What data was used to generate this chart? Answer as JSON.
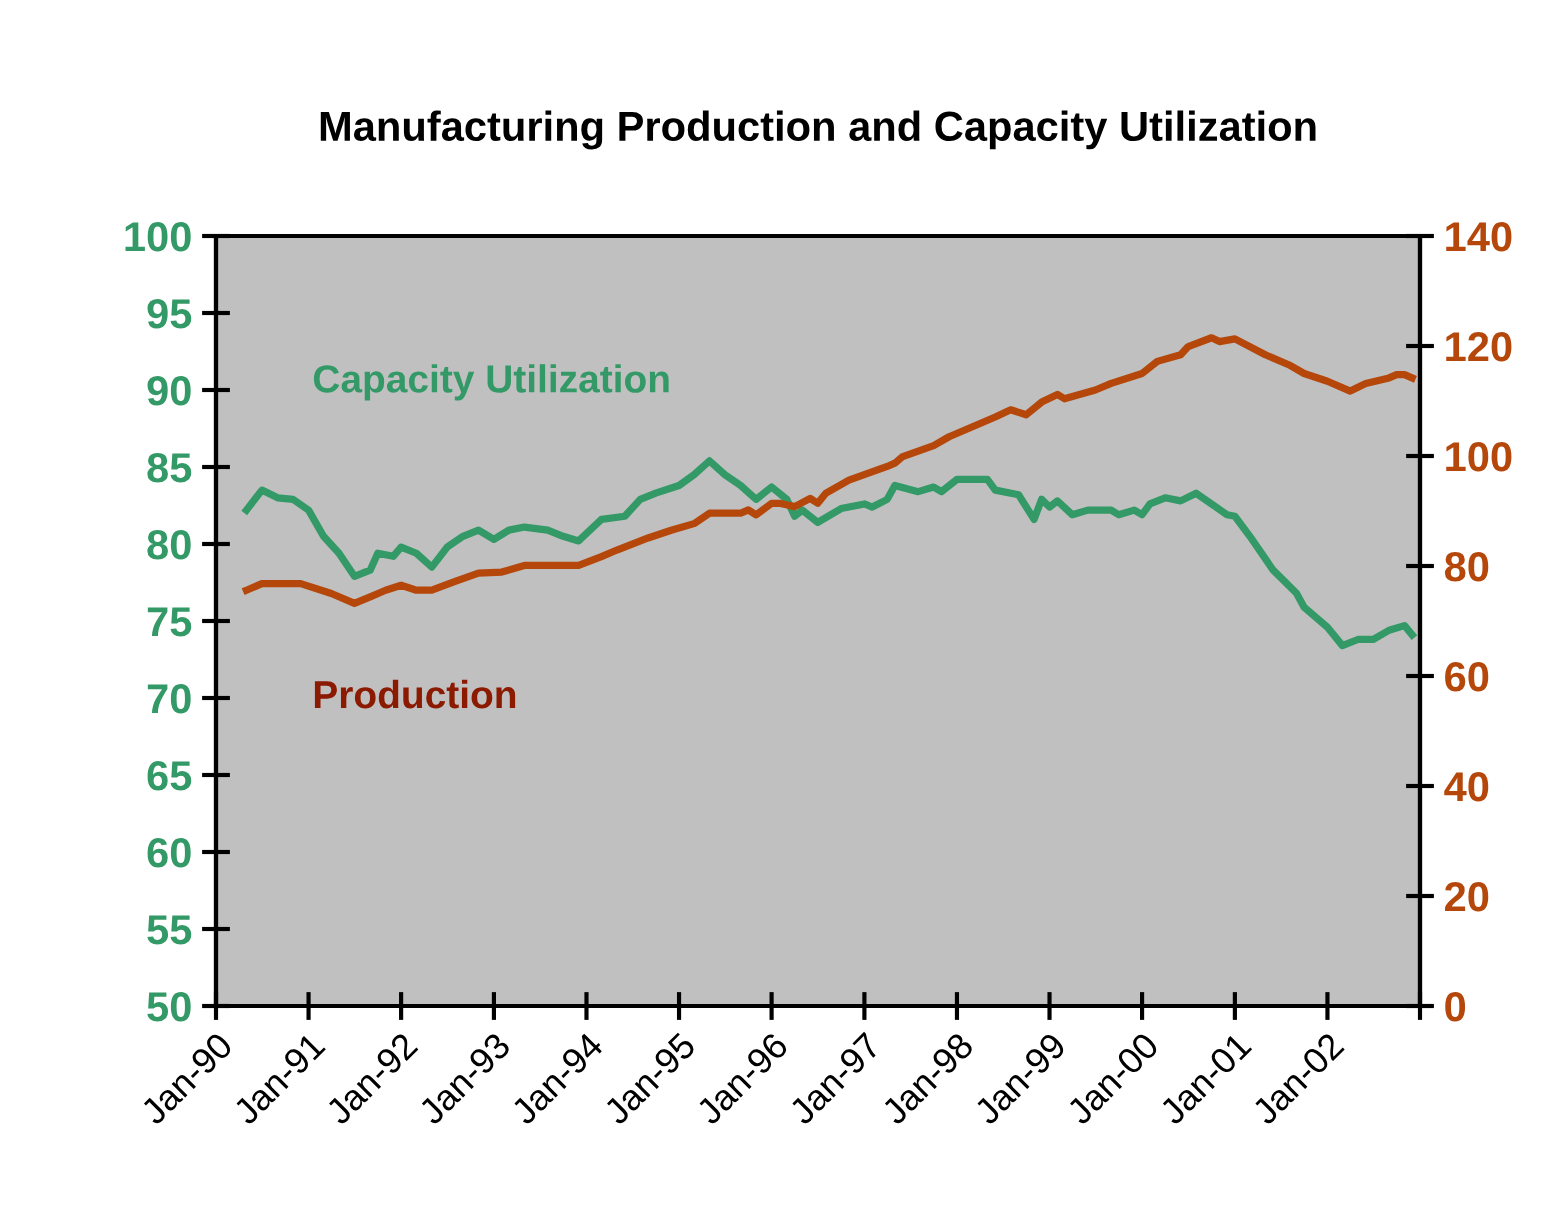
{
  "chart_data": {
    "type": "line",
    "title": "Manufacturing Production and Capacity Utilization",
    "xlim": [
      "1990-01",
      "2003-01"
    ],
    "xticks": [
      {
        "value": "1990-01",
        "label": "Jan-90"
      },
      {
        "value": "1991-01",
        "label": "Jan-91"
      },
      {
        "value": "1992-01",
        "label": "Jan-92"
      },
      {
        "value": "1993-01",
        "label": "Jan-93"
      },
      {
        "value": "1994-01",
        "label": "Jan-94"
      },
      {
        "value": "1995-01",
        "label": "Jan-95"
      },
      {
        "value": "1996-01",
        "label": "Jan-96"
      },
      {
        "value": "1997-01",
        "label": "Jan-97"
      },
      {
        "value": "1998-01",
        "label": "Jan-98"
      },
      {
        "value": "1999-01",
        "label": "Jan-99"
      },
      {
        "value": "2000-01",
        "label": "Jan-00"
      },
      {
        "value": "2001-01",
        "label": "Jan-01"
      },
      {
        "value": "2002-01",
        "label": "Jan-02"
      },
      {
        "value": "2003-01",
        "label": null
      }
    ],
    "ylim": [
      50,
      100
    ],
    "yticks": [
      50,
      55,
      60,
      65,
      70,
      75,
      80,
      85,
      90,
      95,
      100
    ],
    "y2lim": [
      0,
      140
    ],
    "y2ticks": [
      0,
      20,
      40,
      60,
      80,
      100,
      120,
      140
    ],
    "grid": false,
    "legend": false,
    "marker": "none",
    "line_style": "solid",
    "series": [
      {
        "name": "Capacity Utilization",
        "color": "#339966",
        "axis": "y",
        "x": [
          "1990-05",
          "1990-07",
          "1990-09",
          "1990-11",
          "1991-01",
          "1991-03",
          "1991-05",
          "1991-07",
          "1991-09",
          "1991-10",
          "1991-12",
          "1992-01",
          "1992-03",
          "1992-05",
          "1992-07",
          "1992-09",
          "1992-11",
          "1993-01",
          "1993-03",
          "1993-05",
          "1993-08",
          "1993-10",
          "1993-12",
          "1994-03",
          "1994-06",
          "1994-08",
          "1994-10",
          "1995-01",
          "1995-03",
          "1995-05",
          "1995-07",
          "1995-09",
          "1995-11",
          "1996-01",
          "1996-03",
          "1996-04",
          "1996-05",
          "1996-07",
          "1996-10",
          "1997-01",
          "1997-02",
          "1997-04",
          "1997-05",
          "1997-08",
          "1997-10",
          "1997-11",
          "1998-01",
          "1998-03",
          "1998-05",
          "1998-06",
          "1998-09",
          "1998-11",
          "1998-12",
          "1999-01",
          "1999-02",
          "1999-04",
          "1999-06",
          "1999-09",
          "1999-10",
          "1999-12",
          "2000-01",
          "2000-02",
          "2000-04",
          "2000-06",
          "2000-08",
          "2000-10",
          "2000-12",
          "2001-01",
          "2001-03",
          "2001-06",
          "2001-09",
          "2001-10",
          "2002-01",
          "2002-03",
          "2002-05",
          "2002-07",
          "2002-09",
          "2002-11",
          "2002-12"
        ],
        "values": [
          82.2,
          83.5,
          83.0,
          82.9,
          82.2,
          80.5,
          79.4,
          77.9,
          78.3,
          79.4,
          79.2,
          79.8,
          79.4,
          78.5,
          79.8,
          80.5,
          80.9,
          80.3,
          80.9,
          81.1,
          80.9,
          80.5,
          80.2,
          81.6,
          81.8,
          82.9,
          83.3,
          83.8,
          84.5,
          85.4,
          84.5,
          83.8,
          82.9,
          83.7,
          82.9,
          81.8,
          82.2,
          81.4,
          82.3,
          82.6,
          82.4,
          82.9,
          83.8,
          83.4,
          83.7,
          83.4,
          84.2,
          84.2,
          84.2,
          83.5,
          83.2,
          81.6,
          82.9,
          82.4,
          82.8,
          81.9,
          82.2,
          82.2,
          81.9,
          82.2,
          81.9,
          82.6,
          83.0,
          82.8,
          83.3,
          82.6,
          81.9,
          81.8,
          80.5,
          78.3,
          76.8,
          75.9,
          74.6,
          73.4,
          73.8,
          73.8,
          74.4,
          74.7,
          74.1
        ]
      },
      {
        "name": "Production",
        "color": "#b5470b",
        "axis": "y2",
        "x": [
          "1990-05",
          "1990-07",
          "1990-12",
          "1991-04",
          "1991-07",
          "1991-09",
          "1991-11",
          "1992-01",
          "1992-03",
          "1992-05",
          "1992-08",
          "1992-11",
          "1993-02",
          "1993-05",
          "1993-12",
          "1994-03",
          "1994-05",
          "1994-09",
          "1994-12",
          "1995-03",
          "1995-05",
          "1995-09",
          "1995-10",
          "1995-11",
          "1996-01",
          "1996-02",
          "1996-04",
          "1996-06",
          "1996-07",
          "1996-08",
          "1996-11",
          "1997-04",
          "1997-05",
          "1997-06",
          "1997-10",
          "1997-12",
          "1998-06",
          "1998-08",
          "1998-10",
          "1998-12",
          "1999-02",
          "1999-03",
          "1999-07",
          "1999-09",
          "2000-01",
          "2000-03",
          "2000-06",
          "2000-07",
          "2000-10",
          "2000-11",
          "2001-01",
          "2001-05",
          "2001-08",
          "2001-10",
          "2002-01",
          "2002-04",
          "2002-06",
          "2002-09",
          "2002-10",
          "2002-11",
          "2002-12"
        ],
        "values": [
          75.6,
          76.8,
          76.8,
          75.0,
          73.2,
          74.4,
          75.6,
          76.5,
          75.6,
          75.6,
          77.2,
          78.7,
          78.9,
          80.1,
          80.1,
          81.7,
          82.9,
          85.1,
          86.5,
          87.7,
          89.6,
          89.6,
          90.2,
          89.3,
          91.4,
          91.4,
          90.8,
          92.3,
          91.4,
          93.2,
          95.6,
          98.1,
          98.7,
          99.9,
          101.9,
          103.5,
          107.1,
          108.4,
          107.5,
          109.8,
          111.2,
          110.4,
          112.0,
          113.2,
          115.0,
          117.2,
          118.4,
          119.9,
          121.5,
          120.8,
          121.3,
          118.4,
          116.6,
          115.0,
          113.6,
          111.8,
          113.2,
          114.2,
          114.8,
          114.8,
          114.2
        ]
      }
    ]
  }
}
